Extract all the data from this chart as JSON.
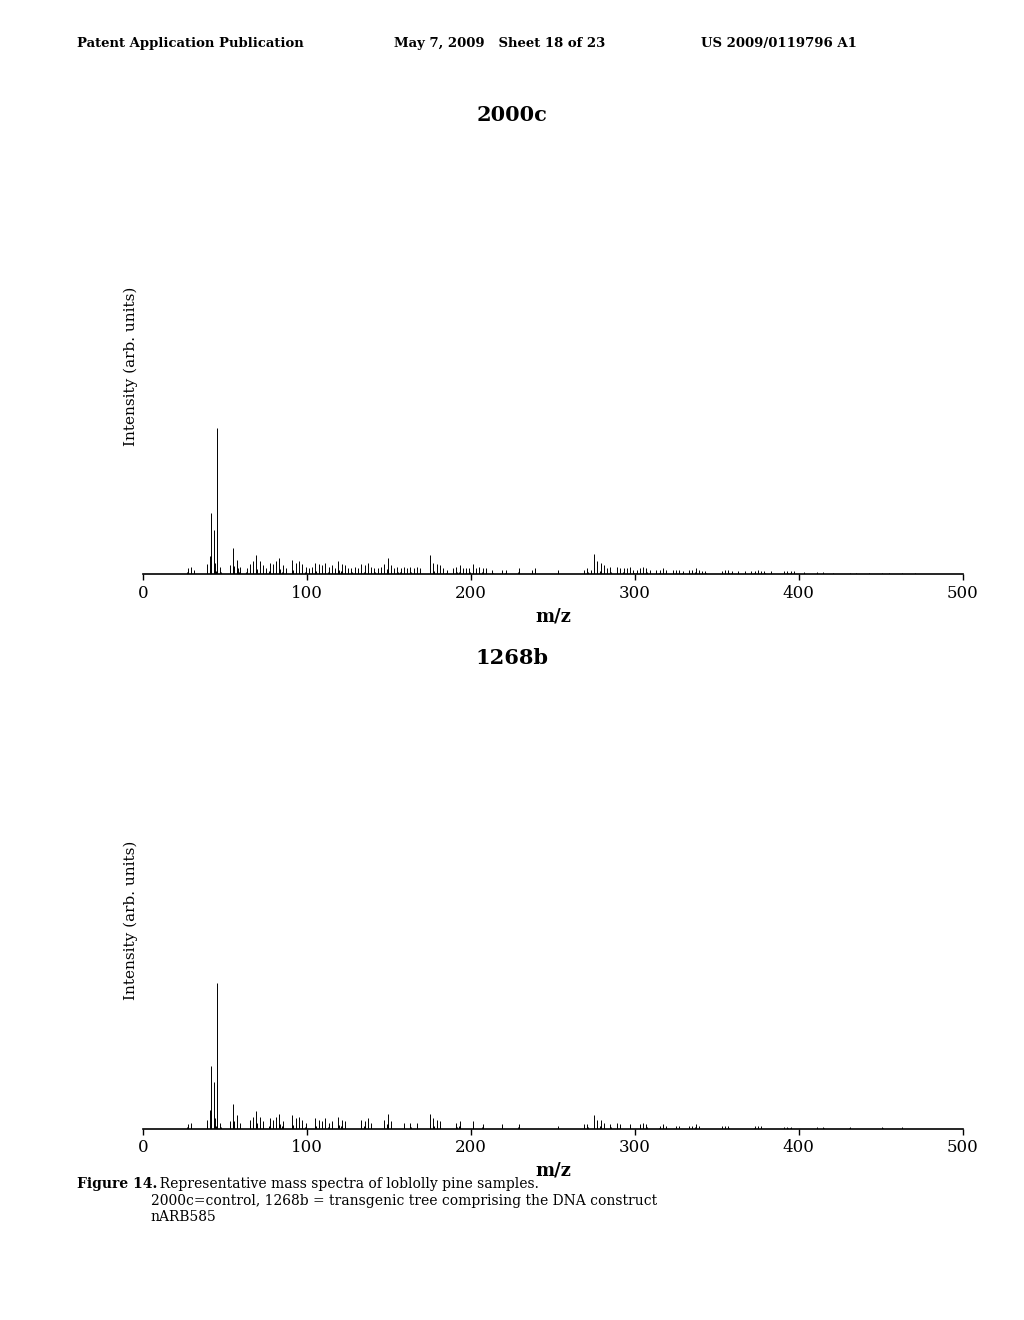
{
  "header_left": "Patent Application Publication",
  "header_mid": "May 7, 2009   Sheet 18 of 23",
  "header_right": "US 2009/0119796 A1",
  "title1": "2000c",
  "title2": "1268b",
  "xlabel": "m/z",
  "ylabel": "Intensity (arb. units)",
  "xlim": [
    0,
    500
  ],
  "ylim": [
    0,
    1.05
  ],
  "xticks": [
    0,
    100,
    200,
    300,
    400,
    500
  ],
  "caption_bold": "Figure 14.",
  "caption_normal": "  Representative mass spectra of loblolly pine samples.\n2000c=control, 1268b = transgenic tree comprising the DNA construct\nnARB585",
  "background": "#ffffff",
  "line_color": "#000000",
  "peaks1": [
    [
      27,
      0.04
    ],
    [
      29,
      0.05
    ],
    [
      31,
      0.03
    ],
    [
      39,
      0.07
    ],
    [
      41,
      0.42
    ],
    [
      43,
      0.3
    ],
    [
      44,
      0.08
    ],
    [
      45,
      1.0
    ],
    [
      47,
      0.05
    ],
    [
      53,
      0.06
    ],
    [
      55,
      0.18
    ],
    [
      57,
      0.1
    ],
    [
      58,
      0.04
    ],
    [
      59,
      0.05
    ],
    [
      63,
      0.04
    ],
    [
      65,
      0.07
    ],
    [
      67,
      0.09
    ],
    [
      69,
      0.13
    ],
    [
      71,
      0.09
    ],
    [
      73,
      0.06
    ],
    [
      75,
      0.04
    ],
    [
      77,
      0.08
    ],
    [
      79,
      0.07
    ],
    [
      81,
      0.09
    ],
    [
      83,
      0.11
    ],
    [
      85,
      0.06
    ],
    [
      87,
      0.04
    ],
    [
      91,
      0.1
    ],
    [
      93,
      0.08
    ],
    [
      95,
      0.09
    ],
    [
      97,
      0.07
    ],
    [
      99,
      0.05
    ],
    [
      101,
      0.04
    ],
    [
      103,
      0.05
    ],
    [
      105,
      0.08
    ],
    [
      107,
      0.07
    ],
    [
      109,
      0.06
    ],
    [
      111,
      0.08
    ],
    [
      113,
      0.05
    ],
    [
      115,
      0.06
    ],
    [
      117,
      0.04
    ],
    [
      119,
      0.09
    ],
    [
      121,
      0.07
    ],
    [
      123,
      0.06
    ],
    [
      125,
      0.04
    ],
    [
      127,
      0.04
    ],
    [
      129,
      0.05
    ],
    [
      131,
      0.04
    ],
    [
      133,
      0.07
    ],
    [
      135,
      0.06
    ],
    [
      137,
      0.08
    ],
    [
      139,
      0.05
    ],
    [
      141,
      0.04
    ],
    [
      143,
      0.04
    ],
    [
      145,
      0.05
    ],
    [
      147,
      0.07
    ],
    [
      149,
      0.11
    ],
    [
      151,
      0.06
    ],
    [
      153,
      0.04
    ],
    [
      155,
      0.05
    ],
    [
      157,
      0.04
    ],
    [
      159,
      0.05
    ],
    [
      161,
      0.04
    ],
    [
      163,
      0.05
    ],
    [
      165,
      0.04
    ],
    [
      167,
      0.05
    ],
    [
      169,
      0.04
    ],
    [
      175,
      0.13
    ],
    [
      177,
      0.08
    ],
    [
      179,
      0.07
    ],
    [
      181,
      0.06
    ],
    [
      183,
      0.04
    ],
    [
      185,
      0.03
    ],
    [
      189,
      0.04
    ],
    [
      191,
      0.05
    ],
    [
      193,
      0.06
    ],
    [
      195,
      0.04
    ],
    [
      197,
      0.04
    ],
    [
      199,
      0.04
    ],
    [
      201,
      0.07
    ],
    [
      203,
      0.04
    ],
    [
      205,
      0.05
    ],
    [
      207,
      0.04
    ],
    [
      209,
      0.04
    ],
    [
      213,
      0.03
    ],
    [
      219,
      0.03
    ],
    [
      221,
      0.03
    ],
    [
      229,
      0.04
    ],
    [
      237,
      0.03
    ],
    [
      239,
      0.04
    ],
    [
      253,
      0.03
    ],
    [
      269,
      0.03
    ],
    [
      271,
      0.04
    ],
    [
      273,
      0.03
    ],
    [
      275,
      0.14
    ],
    [
      277,
      0.09
    ],
    [
      279,
      0.08
    ],
    [
      281,
      0.06
    ],
    [
      283,
      0.04
    ],
    [
      285,
      0.05
    ],
    [
      289,
      0.05
    ],
    [
      291,
      0.04
    ],
    [
      293,
      0.04
    ],
    [
      295,
      0.04
    ],
    [
      297,
      0.05
    ],
    [
      299,
      0.03
    ],
    [
      301,
      0.03
    ],
    [
      303,
      0.04
    ],
    [
      305,
      0.05
    ],
    [
      307,
      0.04
    ],
    [
      309,
      0.03
    ],
    [
      313,
      0.03
    ],
    [
      315,
      0.03
    ],
    [
      317,
      0.04
    ],
    [
      319,
      0.03
    ],
    [
      323,
      0.03
    ],
    [
      325,
      0.03
    ],
    [
      327,
      0.03
    ],
    [
      329,
      0.02
    ],
    [
      333,
      0.03
    ],
    [
      335,
      0.03
    ],
    [
      337,
      0.04
    ],
    [
      339,
      0.03
    ],
    [
      341,
      0.02
    ],
    [
      343,
      0.02
    ],
    [
      353,
      0.02
    ],
    [
      355,
      0.03
    ],
    [
      357,
      0.03
    ],
    [
      359,
      0.02
    ],
    [
      363,
      0.02
    ],
    [
      367,
      0.02
    ],
    [
      371,
      0.02
    ],
    [
      373,
      0.02
    ],
    [
      375,
      0.03
    ],
    [
      377,
      0.02
    ],
    [
      379,
      0.02
    ],
    [
      383,
      0.02
    ],
    [
      391,
      0.02
    ],
    [
      393,
      0.02
    ],
    [
      395,
      0.02
    ],
    [
      397,
      0.02
    ],
    [
      403,
      0.015
    ],
    [
      411,
      0.015
    ],
    [
      415,
      0.015
    ],
    [
      421,
      0.01
    ],
    [
      431,
      0.01
    ],
    [
      435,
      0.01
    ],
    [
      443,
      0.01
    ],
    [
      451,
      0.01
    ],
    [
      455,
      0.01
    ],
    [
      463,
      0.01
    ],
    [
      471,
      0.01
    ]
  ],
  "peaks2": [
    [
      27,
      0.03
    ],
    [
      29,
      0.04
    ],
    [
      39,
      0.06
    ],
    [
      41,
      0.43
    ],
    [
      43,
      0.32
    ],
    [
      44,
      0.07
    ],
    [
      45,
      1.0
    ],
    [
      47,
      0.04
    ],
    [
      53,
      0.05
    ],
    [
      55,
      0.17
    ],
    [
      57,
      0.09
    ],
    [
      59,
      0.04
    ],
    [
      65,
      0.06
    ],
    [
      67,
      0.08
    ],
    [
      69,
      0.12
    ],
    [
      71,
      0.08
    ],
    [
      73,
      0.05
    ],
    [
      77,
      0.07
    ],
    [
      79,
      0.06
    ],
    [
      81,
      0.08
    ],
    [
      83,
      0.1
    ],
    [
      85,
      0.05
    ],
    [
      91,
      0.09
    ],
    [
      93,
      0.07
    ],
    [
      95,
      0.08
    ],
    [
      97,
      0.06
    ],
    [
      99,
      0.04
    ],
    [
      105,
      0.07
    ],
    [
      107,
      0.06
    ],
    [
      109,
      0.05
    ],
    [
      111,
      0.07
    ],
    [
      113,
      0.04
    ],
    [
      115,
      0.05
    ],
    [
      119,
      0.08
    ],
    [
      121,
      0.06
    ],
    [
      123,
      0.05
    ],
    [
      133,
      0.06
    ],
    [
      135,
      0.05
    ],
    [
      137,
      0.07
    ],
    [
      139,
      0.04
    ],
    [
      147,
      0.06
    ],
    [
      149,
      0.1
    ],
    [
      151,
      0.05
    ],
    [
      159,
      0.04
    ],
    [
      163,
      0.04
    ],
    [
      167,
      0.04
    ],
    [
      175,
      0.1
    ],
    [
      177,
      0.07
    ],
    [
      179,
      0.06
    ],
    [
      181,
      0.05
    ],
    [
      191,
      0.04
    ],
    [
      193,
      0.05
    ],
    [
      201,
      0.05
    ],
    [
      207,
      0.03
    ],
    [
      219,
      0.03
    ],
    [
      229,
      0.03
    ],
    [
      253,
      0.02
    ],
    [
      269,
      0.03
    ],
    [
      271,
      0.03
    ],
    [
      275,
      0.09
    ],
    [
      277,
      0.06
    ],
    [
      279,
      0.06
    ],
    [
      281,
      0.04
    ],
    [
      285,
      0.03
    ],
    [
      289,
      0.04
    ],
    [
      291,
      0.03
    ],
    [
      297,
      0.03
    ],
    [
      303,
      0.03
    ],
    [
      305,
      0.04
    ],
    [
      307,
      0.03
    ],
    [
      315,
      0.02
    ],
    [
      317,
      0.03
    ],
    [
      319,
      0.02
    ],
    [
      325,
      0.02
    ],
    [
      327,
      0.02
    ],
    [
      333,
      0.02
    ],
    [
      335,
      0.02
    ],
    [
      337,
      0.03
    ],
    [
      339,
      0.02
    ],
    [
      353,
      0.015
    ],
    [
      355,
      0.02
    ],
    [
      357,
      0.02
    ],
    [
      373,
      0.015
    ],
    [
      375,
      0.015
    ],
    [
      377,
      0.015
    ],
    [
      391,
      0.01
    ],
    [
      393,
      0.01
    ],
    [
      395,
      0.01
    ],
    [
      411,
      0.01
    ],
    [
      415,
      0.01
    ],
    [
      431,
      0.01
    ],
    [
      451,
      0.01
    ],
    [
      463,
      0.01
    ]
  ]
}
